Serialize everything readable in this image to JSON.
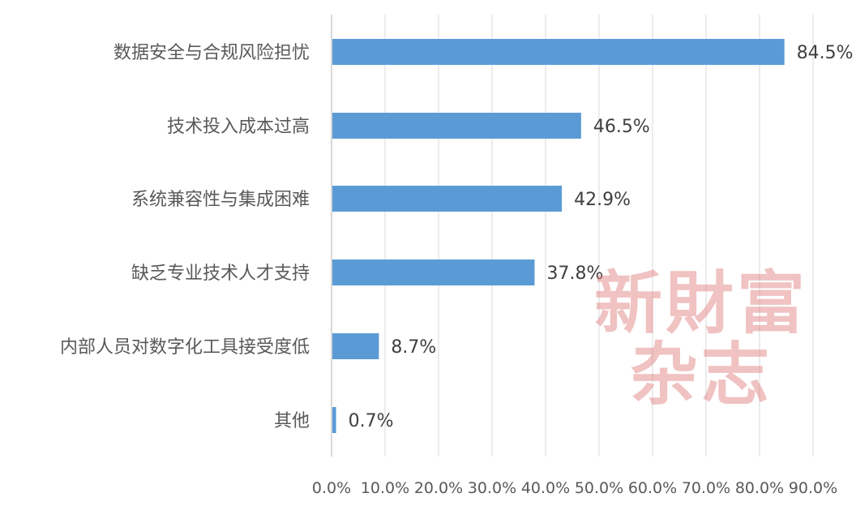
{
  "chart_data": {
    "type": "bar",
    "orientation": "horizontal",
    "categories": [
      "数据安全与合规风险担忧",
      "技术投入成本过高",
      "系统兼容性与集成困难",
      "缺乏专业技术人才支持",
      "内部人员对数字化工具接受度低",
      "其他"
    ],
    "values": [
      84.5,
      46.5,
      42.9,
      37.8,
      8.7,
      0.7
    ],
    "value_labels": [
      "84.5%",
      "46.5%",
      "42.9%",
      "37.8%",
      "8.7%",
      "0.7%"
    ],
    "xlim": [
      0,
      90
    ],
    "x_ticks": [
      "0.0%",
      "10.0%",
      "20.0%",
      "30.0%",
      "40.0%",
      "50.0%",
      "60.0%",
      "70.0%",
      "80.0%",
      "90.0%"
    ],
    "grid": true,
    "legend": "none",
    "bar_color": "#5b9bd5"
  },
  "watermark": {
    "line1": "新財富",
    "line2": "杂志",
    "color": "#de7878"
  }
}
